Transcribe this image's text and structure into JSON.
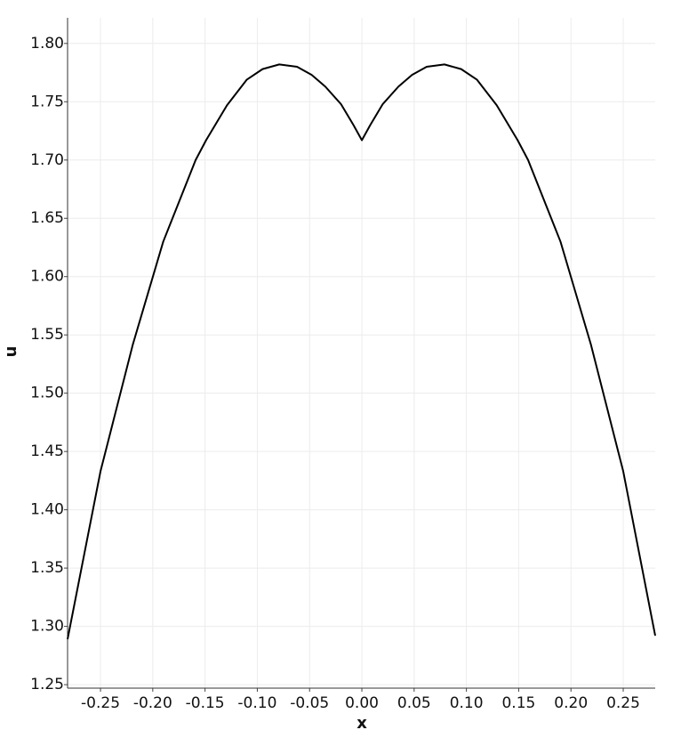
{
  "chart_data": {
    "type": "line",
    "x_label": "x",
    "y_label": "u",
    "x": [
      -0.2815,
      -0.25,
      -0.219,
      -0.19,
      -0.159,
      -0.149,
      -0.129,
      -0.11,
      -0.095,
      -0.079,
      -0.062,
      -0.048,
      -0.035,
      -0.02,
      -0.008,
      0,
      0.008,
      0.02,
      0.035,
      0.048,
      0.062,
      0.079,
      0.095,
      0.11,
      0.129,
      0.149,
      0.159,
      0.19,
      0.219,
      0.25,
      0.2806
    ],
    "series": [
      {
        "name": "u",
        "color": "#000000",
        "values": [
          1.289,
          1.433,
          1.542,
          1.63,
          1.7,
          1.717,
          1.747,
          1.769,
          1.778,
          1.782,
          1.78,
          1.773,
          1.763,
          1.748,
          1.73,
          1.717,
          1.73,
          1.748,
          1.763,
          1.773,
          1.78,
          1.782,
          1.778,
          1.769,
          1.747,
          1.717,
          1.7,
          1.63,
          1.542,
          1.433,
          1.292
        ]
      }
    ],
    "xlim": [
      -0.2815,
      0.2806
    ],
    "ylim": [
      1.247,
      1.822
    ],
    "xticks": [
      -0.25,
      {
        "value": -0.2,
        "label": "-0.20"
      },
      -0.15,
      {
        "value": -0.1,
        "label": "-0.10"
      },
      -0.05,
      {
        "value": 0,
        "label": "0.00"
      },
      0.05,
      {
        "value": 0.1,
        "label": "0.10"
      },
      0.15,
      {
        "value": 0.2,
        "label": "0.20"
      },
      0.25
    ],
    "yticks": [
      1.25,
      {
        "value": 1.3,
        "label": "1.30"
      },
      1.35,
      {
        "value": 1.4,
        "label": "1.40"
      },
      1.45,
      {
        "value": 1.5,
        "label": "1.50"
      },
      1.55,
      {
        "value": 1.6,
        "label": "1.60"
      },
      1.65,
      {
        "value": 1.7,
        "label": "1.70"
      },
      1.75,
      {
        "value": 1.8,
        "label": "1.80"
      }
    ],
    "grid": true
  }
}
